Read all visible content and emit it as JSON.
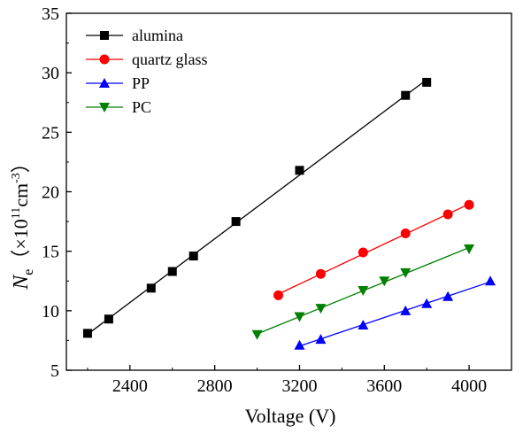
{
  "chart_data": {
    "type": "line",
    "title": "",
    "xlabel": "Voltage (V)",
    "ylabel": {
      "symbol": "N",
      "subscript": "e",
      "open_paren": "（",
      "multiplier": "×10",
      "exponent1": "11",
      "unit": "cm",
      "exponent2": "-3",
      "close_paren": "）"
    },
    "xlim": [
      2100,
      4200
    ],
    "ylim": [
      5,
      35
    ],
    "xticks": [
      2400,
      2800,
      3200,
      3600,
      4000
    ],
    "yticks": [
      5,
      10,
      15,
      20,
      25,
      30,
      35
    ],
    "grid": false,
    "legend_position": "top-left",
    "series": [
      {
        "name": "alumina",
        "color": "#000000",
        "marker": "square",
        "x": [
          2200,
          2300,
          2500,
          2600,
          2700,
          2900,
          3200,
          3700,
          3800
        ],
        "y": [
          8.1,
          9.3,
          11.9,
          13.3,
          14.6,
          17.5,
          21.8,
          28.1,
          29.2
        ]
      },
      {
        "name": "quartz glass",
        "color": "#ff0000",
        "marker": "circle",
        "x": [
          3100,
          3300,
          3500,
          3700,
          3900,
          4000
        ],
        "y": [
          11.3,
          13.1,
          14.9,
          16.5,
          18.1,
          18.9
        ]
      },
      {
        "name": "PP",
        "color": "#0000ff",
        "marker": "triangle-up",
        "x": [
          3200,
          3300,
          3500,
          3700,
          3800,
          3900,
          4100
        ],
        "y": [
          7.1,
          7.6,
          8.8,
          10.0,
          10.6,
          11.2,
          12.5
        ]
      },
      {
        "name": "PC",
        "color": "#008000",
        "marker": "triangle-down",
        "x": [
          3000,
          3200,
          3300,
          3500,
          3600,
          3700,
          4000
        ],
        "y": [
          8.0,
          9.5,
          10.2,
          11.7,
          12.5,
          13.2,
          15.2
        ]
      }
    ]
  }
}
